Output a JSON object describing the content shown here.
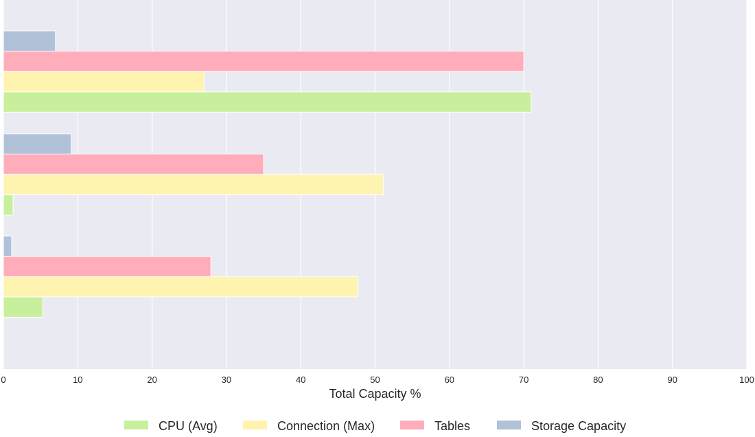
{
  "chart_data": {
    "type": "bar",
    "orientation": "horizontal",
    "title": "",
    "xlabel": "Total Capacity %",
    "ylabel": "",
    "xlim": [
      0,
      100
    ],
    "xticks": [
      "0",
      "10",
      "20",
      "30",
      "40",
      "50",
      "60",
      "70",
      "80",
      "90",
      "100"
    ],
    "grid": "on",
    "legend_position": "bottom",
    "categories": [
      "",
      "",
      ""
    ],
    "series": [
      {
        "name": "CPU (Avg)",
        "color": "#c8f09c",
        "values": [
          71,
          1.3,
          5.3
        ]
      },
      {
        "name": "Connection (Max)",
        "color": "#fff3b0",
        "values": [
          27,
          51.1,
          47.7
        ]
      },
      {
        "name": "Tables",
        "color": "#ffacbb",
        "values": [
          70,
          35,
          27.9
        ]
      },
      {
        "name": "Storage Capacity",
        "color": "#b0c1d8",
        "values": [
          7,
          9.1,
          1.1
        ]
      }
    ]
  },
  "style": {
    "plot_background": "#eaeaf2",
    "grid_color": "#ffffff"
  }
}
